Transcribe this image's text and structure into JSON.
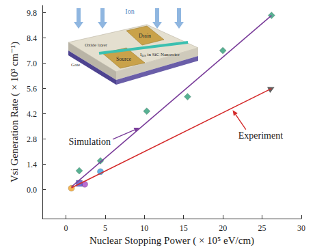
{
  "chart_data": {
    "type": "scatter",
    "xlabel": "Nuclear Stopping Power ( × 10⁵ eV/cm)",
    "ylabel": "Vsi Generation Rate ( × 10³ cm⁻¹)",
    "xlim": [
      -3,
      30
    ],
    "xticks": [
      0,
      5,
      10,
      15,
      20,
      25,
      30
    ],
    "ylim": [
      -1.6,
      10.2
    ],
    "yticks": [
      {
        "value": 0,
        "label": "0.0"
      },
      1.4,
      2.8,
      4.2,
      5.6,
      {
        "value": 7,
        "label": "7.0"
      },
      8.4,
      9.8
    ],
    "grid": false,
    "annotations": [
      "Simulation",
      "Experiment"
    ],
    "inset": {
      "ion": "Ion",
      "drain": "Drain",
      "nanowire": "I",
      "nanowire_sub": "DS",
      "nanowire_rest": " in SiC Nanowire",
      "oxide": "Oxide layer",
      "source": "Source",
      "gate": "Gate"
    },
    "series": [
      {
        "type": "line",
        "color": "#7a3d9a",
        "x": [
          0.7,
          26.2
        ],
        "values": [
          0.15,
          9.65
        ]
      },
      {
        "type": "line",
        "color": "#d42a2a",
        "x": [
          0.7,
          26.2
        ],
        "values": [
          0.1,
          5.6
        ]
      },
      {
        "type": "scatter",
        "marker": "diamond",
        "color": "#2e9e78",
        "x": [
          1.7,
          4.4,
          10.3,
          15.5,
          20,
          26.2
        ],
        "values": [
          1.05,
          1.6,
          4.35,
          5.15,
          7.7,
          9.65
        ]
      },
      {
        "type": "scatter",
        "marker": "circle",
        "colors": [
          "#f0a22a",
          "#a548c8",
          "#3a9ee0"
        ],
        "x": [
          0.7,
          2.4,
          4.4
        ],
        "values": [
          0.08,
          0.3,
          1.0
        ]
      },
      {
        "type": "scatter",
        "marker": "square",
        "color": "#4b4bc4",
        "x": [
          1.7
        ],
        "values": [
          0.35
        ]
      },
      {
        "type": "scatter",
        "marker": "triangle",
        "color": "#3a3a3a",
        "x": [
          26.2
        ],
        "values": [
          5.6
        ]
      }
    ]
  }
}
